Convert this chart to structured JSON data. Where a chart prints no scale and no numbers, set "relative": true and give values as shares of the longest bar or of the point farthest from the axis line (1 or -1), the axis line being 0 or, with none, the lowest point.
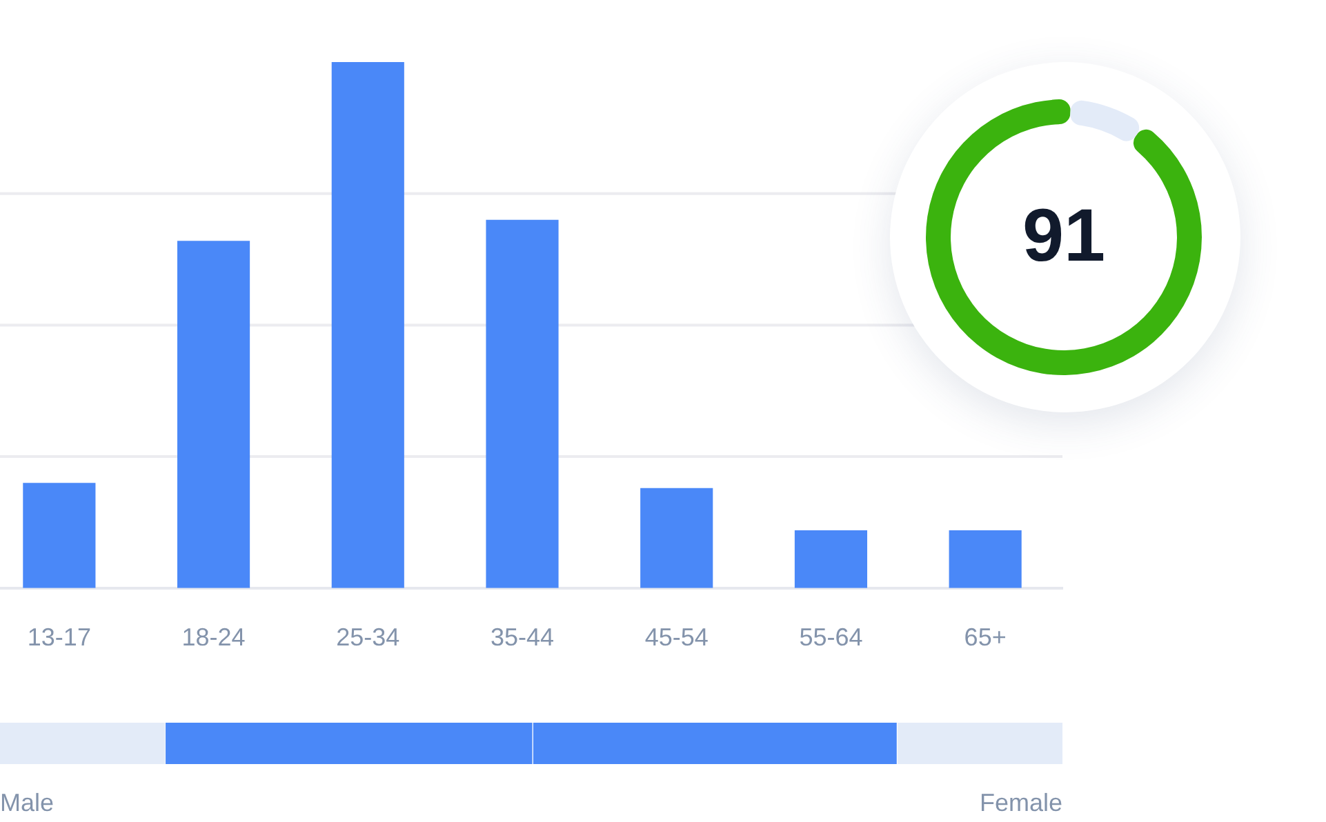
{
  "chart_data": [
    {
      "type": "bar",
      "categories": [
        "13-17",
        "18-24",
        "25-34",
        "35-44",
        "45-54",
        "55-64",
        "65+"
      ],
      "values": [
        0.2,
        0.66,
        1,
        0.7,
        0.19,
        0.11,
        0.11
      ],
      "color": "#4a88f8",
      "relative": true,
      "legend": false,
      "ref_lines": [
        {
          "axis": "y",
          "value": 0.25,
          "color": "#ececf0"
        },
        {
          "axis": "y",
          "value": 0.5,
          "color": "#ececf0"
        },
        {
          "axis": "y",
          "value": 0.75,
          "color": "#ececf0"
        }
      ]
    },
    {
      "type": "donut",
      "categories": [
        null,
        null
      ],
      "values": [
        91,
        9
      ],
      "colors": [
        "#3bb30e",
        "#e3ebf8"
      ],
      "annotations": [
        "91"
      ],
      "legend": false
    },
    {
      "type": "bar",
      "orientation": "horizontal",
      "stacked": true,
      "relative": true,
      "categories": [
        null
      ],
      "legend": false,
      "annotations": [
        "Male",
        "Female"
      ],
      "series": [
        {
          "color": "#e3ebf8",
          "values": [
            0.155
          ]
        },
        {
          "color": "#4a88f8",
          "values": [
            0.346
          ]
        },
        {
          "color": "#4a88f8",
          "values": [
            0.343
          ]
        },
        {
          "color": "#e3ebf8",
          "values": [
            0.156
          ]
        }
      ]
    }
  ]
}
